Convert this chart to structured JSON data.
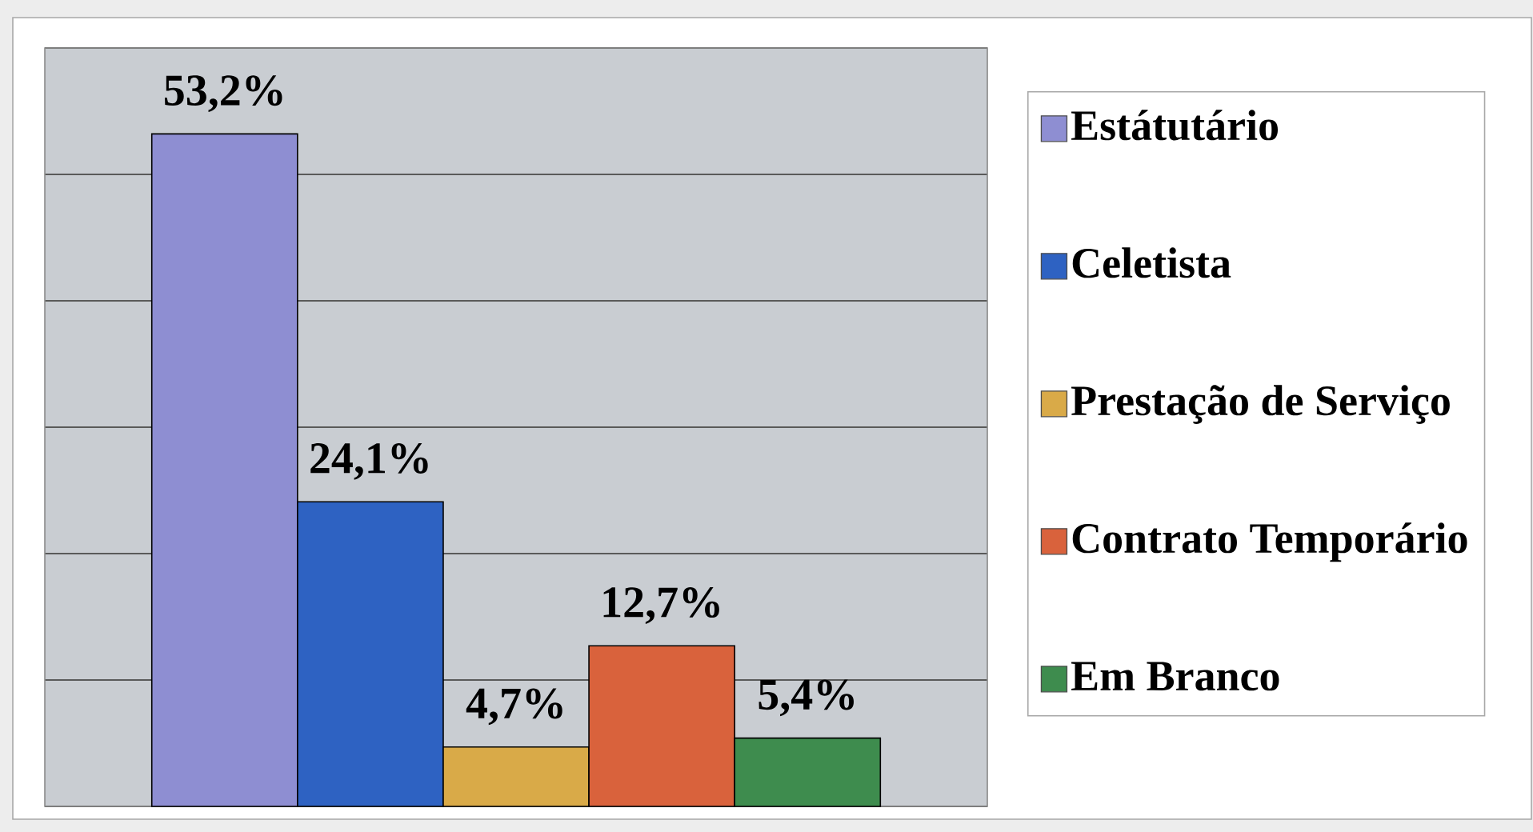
{
  "chart_data": {
    "type": "bar",
    "categories": [
      null
    ],
    "series": [
      {
        "name": "Estátutário",
        "color": "#8e8ed2",
        "values": [
          53.2
        ],
        "value_labels": [
          "53,2%"
        ]
      },
      {
        "name": "Celetista",
        "color": "#2e62c2",
        "values": [
          24.1
        ],
        "value_labels": [
          "24,1%"
        ]
      },
      {
        "name": "Prestação de Serviço",
        "color": "#d9aa48",
        "values": [
          4.7
        ],
        "value_labels": [
          "4,7%"
        ]
      },
      {
        "name": "Contrato Temporário",
        "color": "#d9623c",
        "values": [
          12.7
        ],
        "value_labels": [
          "12,7%"
        ]
      },
      {
        "name": "Em Branco",
        "color": "#3e8c4e",
        "values": [
          5.4
        ],
        "value_labels": [
          "5,4%"
        ]
      }
    ],
    "ylim": [
      0,
      60
    ],
    "yticks": [
      0,
      10,
      20,
      30,
      40,
      50,
      60
    ],
    "tick_labels": false,
    "grid": "y",
    "legend": "right"
  }
}
